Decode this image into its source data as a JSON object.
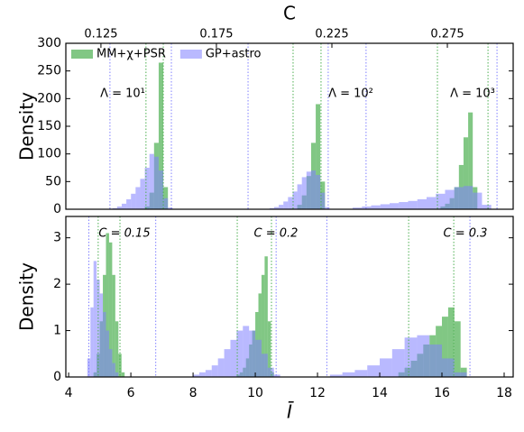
{
  "chart_data": [
    {
      "type": "histogram",
      "xlabel": "C",
      "ylabel": "Density",
      "xlim": [
        0.1098,
        0.3035
      ],
      "ylim": [
        0,
        300
      ],
      "xticks": [
        0.125,
        0.175,
        0.225,
        0.275
      ],
      "yticks": [
        0,
        50,
        100,
        150,
        200,
        250,
        300
      ],
      "legend": "upper left",
      "annotations": [
        "Λ = 10¹",
        "Λ = 10²",
        "Λ = 10³"
      ],
      "series": [
        {
          "name": "MM+χ+PSR",
          "color": "#4caf50",
          "groups": [
            {
              "bins": [
                0.144,
                0.146,
                0.148,
                0.15,
                0.152,
                0.154
              ],
              "values": [
                5,
                30,
                120,
                265,
                40
              ]
            },
            {
              "bins": [
                0.21,
                0.212,
                0.214,
                0.216,
                0.218,
                0.22,
                0.222
              ],
              "values": [
                8,
                25,
                60,
                120,
                190,
                50
              ]
            },
            {
              "bins": [
                0.272,
                0.274,
                0.276,
                0.278,
                0.28,
                0.282,
                0.284,
                0.286,
                0.288
              ],
              "values": [
                5,
                10,
                20,
                40,
                80,
                130,
                175,
                40
              ]
            }
          ]
        },
        {
          "name": "GP+astro",
          "color": "#8080ff",
          "groups": [
            {
              "bins": [
                0.13,
                0.132,
                0.134,
                0.136,
                0.138,
                0.14,
                0.142,
                0.144,
                0.146,
                0.148,
                0.15,
                0.152,
                0.154,
                0.156
              ],
              "values": [
                2,
                5,
                10,
                18,
                28,
                40,
                55,
                75,
                100,
                95,
                70,
                20,
                3
              ]
            },
            {
              "bins": [
                0.198,
                0.2,
                0.202,
                0.204,
                0.206,
                0.208,
                0.21,
                0.212,
                0.214,
                0.216,
                0.218,
                0.22,
                0.222,
                0.224
              ],
              "values": [
                2,
                4,
                8,
                14,
                22,
                32,
                45,
                58,
                68,
                70,
                62,
                30,
                4
              ]
            },
            {
              "bins": [
                0.234,
                0.238,
                0.242,
                0.246,
                0.25,
                0.254,
                0.258,
                0.262,
                0.266,
                0.27,
                0.274,
                0.278,
                0.282,
                0.286,
                0.29,
                0.294
              ],
              "values": [
                3,
                5,
                7,
                9,
                11,
                13,
                15,
                18,
                22,
                28,
                35,
                40,
                42,
                30,
                8
              ]
            }
          ]
        }
      ],
      "vlines": [
        {
          "color": "#8080ff",
          "x": [
            0.1289,
            0.1555,
            0.1887,
            0.2234,
            0.2398,
            0.2965
          ]
        },
        {
          "color": "#4caf50",
          "x": [
            0.1445,
            0.152,
            0.2082,
            0.2203,
            0.2707,
            0.2926
          ]
        }
      ]
    },
    {
      "type": "histogram",
      "xlabel": "Ī",
      "ylabel": "Density",
      "xlim": [
        3.91,
        18.29
      ],
      "ylim": [
        0,
        3.46
      ],
      "xticks": [
        4,
        6,
        8,
        10,
        12,
        14,
        16,
        18
      ],
      "yticks": [
        0,
        1,
        2,
        3
      ],
      "annotations": [
        "C = 0.15",
        "C = 0.2",
        "C = 0.3"
      ],
      "series": [
        {
          "name": "MM+χ+PSR",
          "color": "#4caf50",
          "groups": [
            {
              "bins": [
                4.8,
                4.9,
                5.0,
                5.1,
                5.2,
                5.3,
                5.4,
                5.5,
                5.6,
                5.7,
                5.8
              ],
              "values": [
                0.1,
                0.5,
                1.2,
                2.2,
                3.1,
                2.9,
                2.2,
                1.2,
                0.5,
                0.1
              ]
            },
            {
              "bins": [
                9.4,
                9.5,
                9.6,
                9.7,
                9.8,
                9.9,
                10.0,
                10.1,
                10.2,
                10.3,
                10.4,
                10.5,
                10.6
              ],
              "values": [
                0.05,
                0.1,
                0.2,
                0.4,
                0.7,
                1.0,
                1.4,
                1.8,
                2.2,
                2.6,
                1.2,
                0.1
              ]
            },
            {
              "bins": [
                14.6,
                14.8,
                15.0,
                15.2,
                15.4,
                15.6,
                15.8,
                16.0,
                16.2,
                16.4,
                16.6,
                16.8
              ],
              "values": [
                0.1,
                0.2,
                0.35,
                0.5,
                0.7,
                0.9,
                1.1,
                1.3,
                1.5,
                1.2,
                0.2
              ]
            }
          ]
        },
        {
          "name": "GP+astro",
          "color": "#8080ff",
          "groups": [
            {
              "bins": [
                4.6,
                4.7,
                4.8,
                4.9,
                5.0,
                5.1,
                5.2,
                5.3,
                5.4,
                5.5,
                5.6
              ],
              "values": [
                0.4,
                1.5,
                2.5,
                2.1,
                1.8,
                1.4,
                1.0,
                0.6,
                0.3,
                0.1
              ]
            },
            {
              "bins": [
                8.0,
                8.2,
                8.4,
                8.6,
                8.8,
                9.0,
                9.2,
                9.4,
                9.6,
                9.8,
                10.0,
                10.2,
                10.4,
                10.6,
                10.8
              ],
              "values": [
                0.05,
                0.1,
                0.15,
                0.25,
                0.4,
                0.6,
                0.8,
                1.0,
                1.1,
                1.0,
                0.8,
                0.5,
                0.2,
                0.05
              ]
            },
            {
              "bins": [
                12.4,
                12.8,
                13.2,
                13.6,
                14.0,
                14.4,
                14.8,
                15.2,
                15.6,
                16.0,
                16.4,
                16.8
              ],
              "values": [
                0.05,
                0.1,
                0.15,
                0.25,
                0.4,
                0.6,
                0.85,
                0.9,
                0.7,
                0.4,
                0.1
              ]
            }
          ]
        }
      ],
      "vlines": [
        {
          "color": "#8080ff",
          "x": [
            4.65,
            6.8,
            10.67,
            12.3,
            16.9
          ]
        },
        {
          "color": "#4caf50",
          "x": [
            4.95,
            5.65,
            9.42,
            10.52,
            14.93,
            16.38
          ]
        }
      ]
    }
  ]
}
